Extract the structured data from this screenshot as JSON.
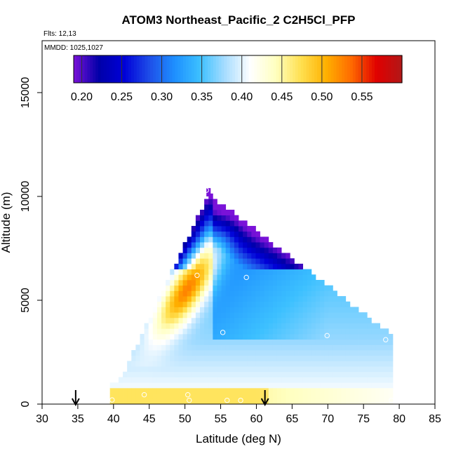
{
  "chart_data": {
    "type": "heatmap",
    "title": "ATOM3 Northeast_Pacific_2 C2H5Cl_PFP",
    "flights_label": "Flts: 12,13",
    "date_label": "MMDD: 1025,1027",
    "xlabel": "Latitude (deg N)",
    "ylabel": "Altitude (m)",
    "xlim": [
      30,
      85
    ],
    "ylim": [
      0,
      17500
    ],
    "x_ticks": [
      "30",
      "35",
      "40",
      "45",
      "50",
      "55",
      "60",
      "65",
      "70",
      "75",
      "80",
      "85"
    ],
    "y_ticks": [
      "0",
      "5000",
      "10000",
      "15000"
    ],
    "colorbar": {
      "ticks": [
        "0.20",
        "0.25",
        "0.30",
        "0.35",
        "0.40",
        "0.45",
        "0.50",
        "0.55"
      ],
      "range": [
        0.19,
        0.6
      ],
      "colors": [
        "#7a12d8",
        "#0000a8",
        "#0000d8",
        "#1e4ee8",
        "#1e90ff",
        "#3cc0ff",
        "#a8ddff",
        "#ffffff",
        "#ffffc0",
        "#ffe050",
        "#ffb000",
        "#ff6a00",
        "#e00000",
        "#b21818"
      ]
    },
    "arrows_lat": [
      34.7,
      61.2
    ],
    "profiles": [
      {
        "lat": 53.3,
        "top": 10400,
        "values": [
          [
            0,
            0.45
          ],
          [
            500,
            0.46
          ],
          [
            1000,
            0.44
          ],
          [
            1500,
            0.42
          ],
          [
            2000,
            0.41
          ],
          [
            2500,
            0.4
          ],
          [
            3000,
            0.395
          ],
          [
            3500,
            0.39
          ],
          [
            4000,
            0.385
          ],
          [
            4500,
            0.38
          ],
          [
            5000,
            0.375
          ],
          [
            5500,
            0.37
          ],
          [
            6000,
            0.36
          ],
          [
            6500,
            0.35
          ],
          [
            7000,
            0.34
          ],
          [
            7500,
            0.33
          ],
          [
            8000,
            0.31
          ],
          [
            8500,
            0.29
          ],
          [
            9000,
            0.27
          ],
          [
            9500,
            0.25
          ],
          [
            10000,
            0.23
          ],
          [
            10400,
            0.2
          ]
        ]
      },
      {
        "lat": 53.3,
        "top": 6200,
        "center": 6200,
        "plume": true
      },
      {
        "lat": 79.0,
        "top": 3200,
        "values": [
          [
            0,
            0.37
          ],
          [
            1000,
            0.375
          ],
          [
            2000,
            0.38
          ],
          [
            3000,
            0.385
          ]
        ]
      }
    ],
    "samples": [
      {
        "lat": 39.8,
        "alt": 200
      },
      {
        "lat": 44.3,
        "alt": 450
      },
      {
        "lat": 50.4,
        "alt": 450
      },
      {
        "lat": 50.6,
        "alt": 180
      },
      {
        "lat": 51.7,
        "alt": 6200
      },
      {
        "lat": 53.0,
        "alt": 10300
      },
      {
        "lat": 55.3,
        "alt": 3450
      },
      {
        "lat": 55.9,
        "alt": 180
      },
      {
        "lat": 57.8,
        "alt": 180
      },
      {
        "lat": 58.6,
        "alt": 6100
      },
      {
        "lat": 69.9,
        "alt": 3300
      },
      {
        "lat": 78.1,
        "alt": 3100
      },
      {
        "lat": 78.9,
        "alt": 180
      }
    ]
  }
}
